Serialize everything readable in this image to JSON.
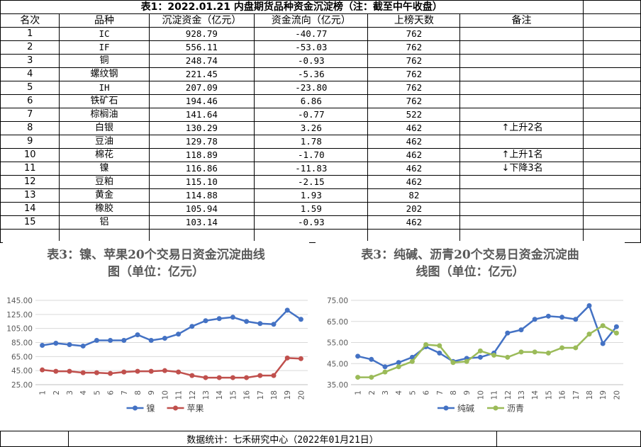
{
  "table": {
    "title": "表1：2022.01.21 内盘期货品种资金沉淀榜（注：截至中午收盘）",
    "headers": [
      "名次",
      "品种",
      "沉淀资金（亿元）",
      "资金流向（亿元）",
      "上榜天数",
      "备注"
    ],
    "rows": [
      [
        "1",
        "IC",
        "928.79",
        "-40.77",
        "762",
        ""
      ],
      [
        "2",
        "IF",
        "556.11",
        "-53.03",
        "762",
        ""
      ],
      [
        "3",
        "铜",
        "248.74",
        "-0.93",
        "762",
        ""
      ],
      [
        "4",
        "螺纹钢",
        "221.45",
        "-5.36",
        "762",
        ""
      ],
      [
        "5",
        "IH",
        "207.09",
        "-23.80",
        "762",
        ""
      ],
      [
        "6",
        "铁矿石",
        "194.46",
        "6.86",
        "762",
        ""
      ],
      [
        "7",
        "棕榈油",
        "141.64",
        "-0.77",
        "522",
        ""
      ],
      [
        "8",
        "白银",
        "130.29",
        "3.26",
        "462",
        "↑上升2名"
      ],
      [
        "9",
        "豆油",
        "129.78",
        "1.78",
        "462",
        ""
      ],
      [
        "10",
        "棉花",
        "118.89",
        "-1.70",
        "462",
        "↑上升1名"
      ],
      [
        "11",
        "镍",
        "116.86",
        "-11.83",
        "462",
        "↓下降3名"
      ],
      [
        "12",
        "豆粕",
        "115.10",
        "-2.15",
        "462",
        ""
      ],
      [
        "13",
        "黄金",
        "114.88",
        "1.93",
        "82",
        ""
      ],
      [
        "14",
        "橡胶",
        "105.94",
        "1.59",
        "202",
        ""
      ],
      [
        "15",
        "铝",
        "103.14",
        "-0.93",
        "462",
        ""
      ]
    ]
  },
  "footer": "数据统计：七禾研究中心（2022年01月21日）",
  "chart_data": [
    {
      "type": "line",
      "title": "表3：镍、苹果20个交易日资金沉淀曲线图（单位：亿元）",
      "title_lines": [
        "表3：镍、苹果20个交易日资金沉淀曲线",
        "图（单位：亿元）"
      ],
      "x": [
        1,
        2,
        3,
        4,
        5,
        6,
        7,
        8,
        9,
        10,
        11,
        12,
        13,
        14,
        15,
        16,
        17,
        18,
        19,
        20
      ],
      "ylim": [
        25,
        145
      ],
      "yticks": [
        25,
        45,
        65,
        85,
        105,
        125,
        145
      ],
      "ytick_labels": [
        "25.00",
        "45.00",
        "65.00",
        "85.00",
        "105.00",
        "125.00",
        "145.00"
      ],
      "grid": true,
      "legend_position": "bottom",
      "series": [
        {
          "name": "镍",
          "color": "#4472C4",
          "values": [
            81,
            84,
            82,
            80,
            88,
            88,
            88,
            96,
            88,
            91,
            97,
            108,
            116,
            119,
            121,
            115,
            112,
            111,
            131,
            118
          ]
        },
        {
          "name": "苹果",
          "color": "#C0504D",
          "values": [
            46,
            44,
            44,
            42,
            42,
            41,
            43,
            44,
            44,
            45,
            43,
            38,
            35,
            35,
            35,
            35,
            38,
            38,
            63,
            62
          ]
        }
      ]
    },
    {
      "type": "line",
      "title": "表3：纯碱、沥青20个交易日资金沉淀曲线图（单位：亿元）",
      "title_lines": [
        "表3：纯碱、沥青20个交易日资金沉淀曲",
        "线图（单位：亿元）"
      ],
      "x": [
        1,
        2,
        3,
        4,
        5,
        6,
        7,
        8,
        9,
        10,
        11,
        12,
        13,
        14,
        15,
        16,
        17,
        18,
        19,
        20
      ],
      "ylim": [
        35,
        75
      ],
      "yticks": [
        35,
        45,
        55,
        65,
        75
      ],
      "ytick_labels": [
        "35.00",
        "45.00",
        "55.00",
        "65.00",
        "75.00"
      ],
      "grid": true,
      "legend_position": "bottom",
      "series": [
        {
          "name": "纯碱",
          "color": "#4472C4",
          "values": [
            48.5,
            47,
            43.5,
            45.5,
            48,
            53,
            50,
            46,
            47.5,
            48,
            50,
            59.5,
            61,
            66,
            67.5,
            67,
            66,
            72.5,
            54.5,
            62.5
          ]
        },
        {
          "name": "沥青",
          "color": "#9BBB59",
          "values": [
            38.5,
            38.5,
            41,
            43.5,
            46,
            54,
            53.5,
            45.5,
            46,
            51,
            49,
            48,
            50.5,
            50.5,
            50,
            52.5,
            52.5,
            59,
            63,
            59.5
          ]
        }
      ]
    }
  ]
}
